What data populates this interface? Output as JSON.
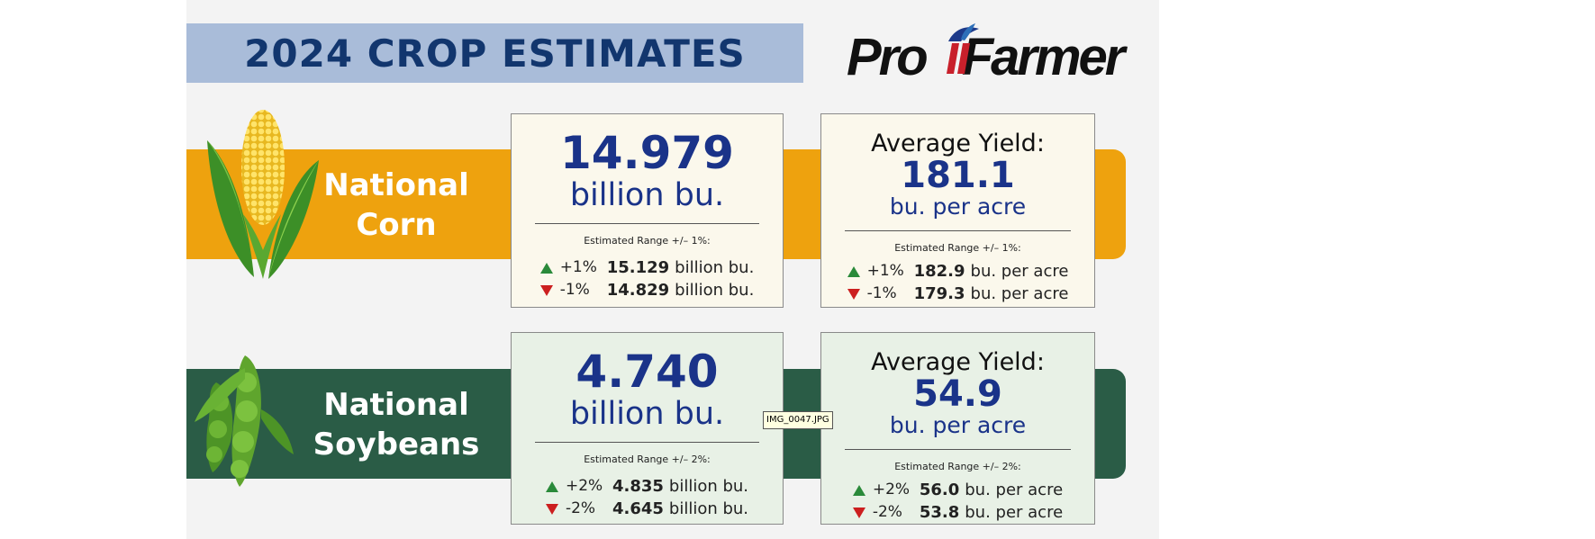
{
  "header": {
    "title": "2024 CROP ESTIMATES"
  },
  "logo": {
    "text_left": "Pro",
    "text_right": "Farmer",
    "colors": {
      "red": "#c8202b",
      "blue": "#1d3a8a"
    }
  },
  "corn": {
    "label_line1": "National",
    "label_line2": "Corn",
    "total": {
      "value": "14.979",
      "unit": "billion bu.",
      "range_title": "Estimated Range +/– 1%:",
      "up": {
        "pct": "+1%",
        "value": "15.129",
        "unit": "billion bu."
      },
      "down": {
        "pct": "-1%",
        "value": "14.829",
        "unit": "billion bu."
      }
    },
    "yield": {
      "heading": "Average Yield:",
      "value": "181.1",
      "unit": "bu. per acre",
      "range_title": "Estimated Range +/– 1%:",
      "up": {
        "pct": "+1%",
        "value": "182.9",
        "unit": "bu. per acre"
      },
      "down": {
        "pct": "-1%",
        "value": "179.3",
        "unit": "bu. per acre"
      }
    }
  },
  "soy": {
    "label_line1": "National",
    "label_line2": "Soybeans",
    "total": {
      "value": "4.740",
      "unit": "billion bu.",
      "range_title": "Estimated Range +/– 2%:",
      "up": {
        "pct": "+2%",
        "value": "4.835",
        "unit": "billion bu."
      },
      "down": {
        "pct": "-2%",
        "value": "4.645",
        "unit": "billion bu."
      }
    },
    "yield": {
      "heading": "Average Yield:",
      "value": "54.9",
      "unit": "bu. per acre",
      "range_title": "Estimated Range +/– 2%:",
      "up": {
        "pct": "+2%",
        "value": "56.0",
        "unit": "bu. per acre"
      },
      "down": {
        "pct": "-2%",
        "value": "53.8",
        "unit": "bu. per acre"
      }
    }
  },
  "tooltip": {
    "text": "IMG_0047.JPG"
  },
  "icons": {
    "corn": "corn-cob-icon",
    "soy": "soybean-pod-icon",
    "up": "triangle-up-icon",
    "down": "triangle-down-icon"
  },
  "colors": {
    "title_band": "#a9bcd9",
    "title_text": "#12366e",
    "corn_band": "#eea20e",
    "soy_band": "#2a5c46",
    "value_blue": "#1a3389",
    "up_green": "#2a8a3a",
    "down_red": "#cc1f1f"
  }
}
